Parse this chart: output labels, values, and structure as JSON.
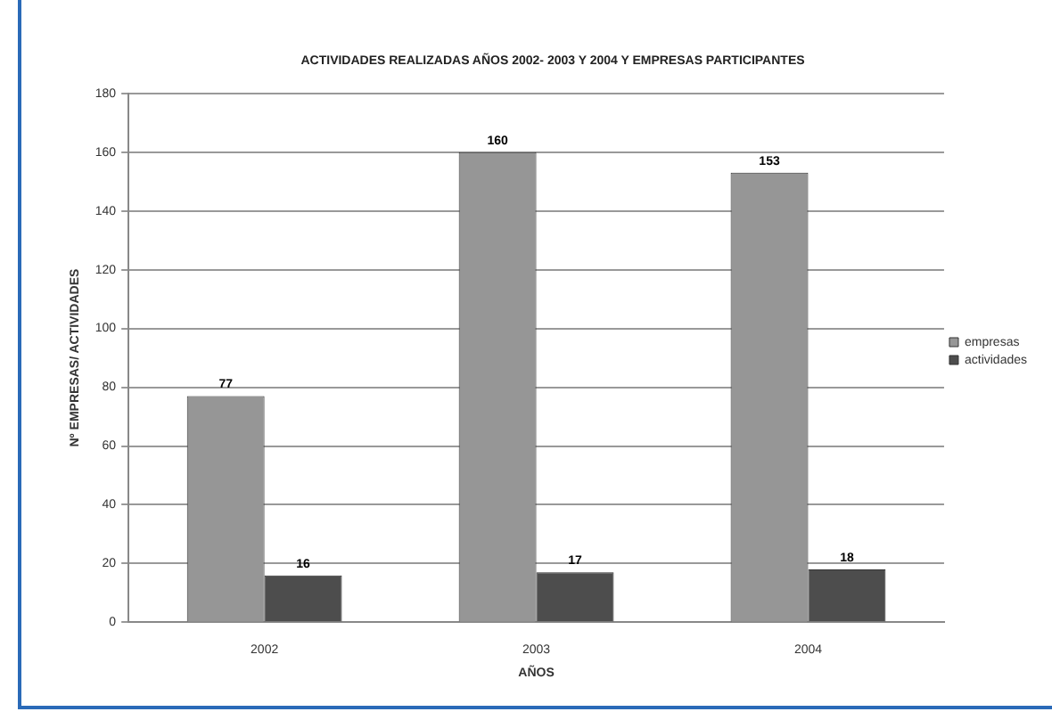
{
  "chart_data": {
    "type": "bar",
    "title": "ACTIVIDADES REALIZADAS AÑOS 2002- 2003 Y 2004 Y EMPRESAS PARTICIPANTES",
    "xlabel": "AÑOS",
    "ylabel": "Nº EMPRESAS/ ACTIVIDADES",
    "categories": [
      "2002",
      "2003",
      "2004"
    ],
    "series": [
      {
        "name": "empresas",
        "color": "#969696",
        "values": [
          77,
          160,
          153
        ]
      },
      {
        "name": "actividades",
        "color": "#4d4d4d",
        "values": [
          16,
          17,
          18
        ]
      }
    ],
    "ylim": [
      0,
      180
    ],
    "yticks": [
      0,
      20,
      40,
      60,
      80,
      100,
      120,
      140,
      160,
      180
    ],
    "grid": "y",
    "legend": "right",
    "data_labels": true
  }
}
